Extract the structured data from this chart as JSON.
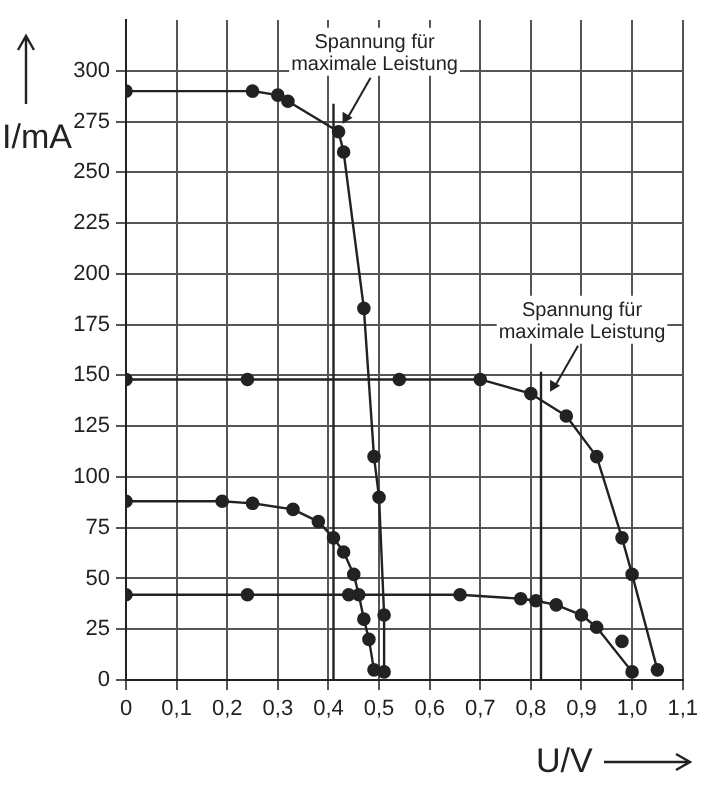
{
  "chart_data": {
    "type": "line",
    "xlabel": "U/V",
    "ylabel": "I/mA",
    "xlim": [
      0,
      1.1
    ],
    "ylim": [
      0,
      325
    ],
    "xticks": [
      0,
      {
        "value": 0.1,
        "label": "0,1"
      },
      {
        "value": 0.2,
        "label": "0,2"
      },
      {
        "value": 0.3,
        "label": "0,3"
      },
      {
        "value": 0.4,
        "label": "0,4"
      },
      {
        "value": 0.5,
        "label": "0,5"
      },
      {
        "value": 0.6,
        "label": "0,6"
      },
      {
        "value": 0.7,
        "label": "0,7"
      },
      {
        "value": 0.8,
        "label": "0,8"
      },
      {
        "value": 0.9,
        "label": "0,9"
      },
      {
        "value": 1.0,
        "label": "1,0"
      },
      {
        "value": 1.1,
        "label": "1,1"
      }
    ],
    "yticks": [
      0,
      25,
      50,
      75,
      100,
      125,
      150,
      175,
      200,
      225,
      250,
      275,
      300
    ],
    "grid": true,
    "legend": false,
    "marker": "circle",
    "line_style": "solid",
    "series": [
      {
        "color": "#222222",
        "x": [
          0,
          0.25,
          0.3,
          0.32,
          0.42,
          0.43,
          0.47,
          0.49,
          0.5,
          0.51,
          0.51
        ],
        "values": [
          290,
          290,
          288,
          285,
          270,
          260,
          183,
          110,
          90,
          32,
          4
        ]
      },
      {
        "color": "#222222",
        "x": [
          0,
          0.19,
          0.25,
          0.33,
          0.38,
          0.41,
          0.43,
          0.45,
          0.46,
          0.47,
          0.48,
          0.49
        ],
        "values": [
          88,
          88,
          87,
          84,
          78,
          70,
          63,
          52,
          42,
          30,
          20,
          5
        ]
      },
      {
        "color": "#222222",
        "x": [
          0,
          0.24,
          0.54,
          0.7,
          0.8,
          0.87,
          0.93,
          0.98,
          1.0,
          1.05
        ],
        "values": [
          148,
          148,
          148,
          148,
          141,
          130,
          110,
          70,
          52,
          5
        ]
      },
      {
        "color": "#222222",
        "x": [
          0,
          0.24,
          0.44,
          0.66,
          0.78,
          0.81,
          0.85,
          0.9,
          0.93,
          1.0
        ],
        "values": [
          42,
          42,
          42,
          42,
          40,
          39,
          37,
          32,
          26,
          4
        ]
      },
      {
        "type": "scatter",
        "color": "#222222",
        "x": [
          0.98
        ],
        "values": [
          19
        ]
      }
    ],
    "ref_lines": [
      {
        "axis": "x",
        "value": 0.41,
        "color": "#222222"
      },
      {
        "axis": "x",
        "value": 0.82,
        "color": "#222222"
      }
    ],
    "annotations": [
      {
        "text": "Spannung für maximale Leistung",
        "x": 0.42,
        "y": 272
      },
      {
        "text": "Spannung für maximale Leistung",
        "x": 0.83,
        "y": 140
      }
    ]
  }
}
